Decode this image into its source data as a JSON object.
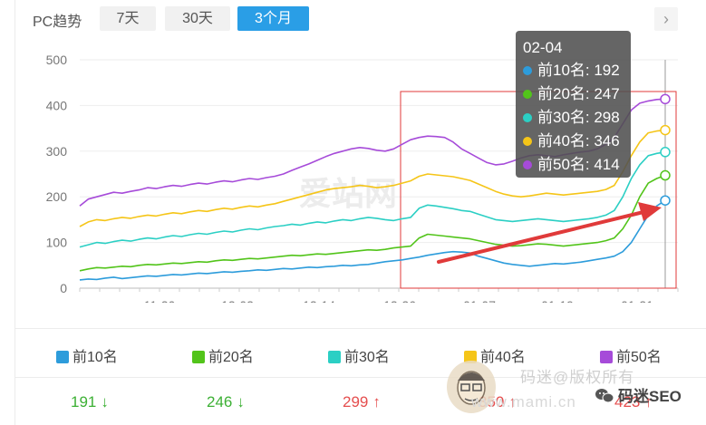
{
  "header": {
    "label": "PC趋势",
    "tabs": [
      {
        "label": "7天",
        "active": false
      },
      {
        "label": "30天",
        "active": false
      },
      {
        "label": "3个月",
        "active": true
      }
    ],
    "next_icon": "chevron-right-icon"
  },
  "tooltip": {
    "date": "02-04",
    "rows": [
      {
        "label": "前10名: 192",
        "color": "#2d9cdb"
      },
      {
        "label": "前20名: 247",
        "color": "#52c41a"
      },
      {
        "label": "前30名: 298",
        "color": "#2bcfc4"
      },
      {
        "label": "前40名: 346",
        "color": "#f5c518"
      },
      {
        "label": "前50名: 414",
        "color": "#a64bd9"
      }
    ]
  },
  "chart_data": {
    "type": "line",
    "title": "",
    "xlabel": "",
    "ylabel": "",
    "ylim": [
      0,
      500
    ],
    "yticks": [
      0,
      100,
      200,
      300,
      400,
      500
    ],
    "xtick_labels": [
      "11-20",
      "12-02",
      "12-14",
      "12-26",
      "01-07",
      "01-19",
      "01-31"
    ],
    "grid": true,
    "legend_position": "bottom",
    "highlight_date": "02-04",
    "series": [
      {
        "name": "前10名",
        "color": "#2d9cdb",
        "values": [
          18,
          20,
          19,
          22,
          24,
          21,
          23,
          25,
          27,
          26,
          28,
          30,
          29,
          31,
          33,
          32,
          34,
          36,
          35,
          37,
          38,
          40,
          39,
          41,
          43,
          42,
          44,
          46,
          45,
          47,
          48,
          50,
          49,
          51,
          52,
          55,
          58,
          60,
          62,
          65,
          68,
          72,
          75,
          78,
          80,
          79,
          77,
          70,
          65,
          60,
          55,
          52,
          50,
          48,
          50,
          52,
          54,
          53,
          55,
          57,
          60,
          63,
          66,
          70,
          80,
          100,
          130,
          160,
          180,
          192
        ]
      },
      {
        "name": "前20名",
        "color": "#52c41a",
        "values": [
          38,
          42,
          45,
          44,
          46,
          48,
          47,
          50,
          52,
          51,
          53,
          55,
          54,
          56,
          58,
          57,
          60,
          62,
          61,
          63,
          65,
          64,
          66,
          68,
          70,
          72,
          71,
          73,
          75,
          74,
          76,
          78,
          80,
          82,
          84,
          83,
          85,
          88,
          90,
          92,
          110,
          118,
          116,
          114,
          112,
          110,
          108,
          104,
          100,
          96,
          94,
          92,
          93,
          95,
          97,
          96,
          94,
          92,
          94,
          96,
          98,
          100,
          104,
          110,
          130,
          160,
          200,
          230,
          240,
          247
        ]
      },
      {
        "name": "前30名",
        "color": "#2bcfc4",
        "values": [
          90,
          95,
          100,
          98,
          102,
          105,
          103,
          107,
          110,
          108,
          112,
          115,
          113,
          117,
          120,
          118,
          122,
          125,
          123,
          127,
          130,
          128,
          132,
          135,
          137,
          140,
          138,
          142,
          145,
          143,
          147,
          150,
          148,
          152,
          155,
          153,
          150,
          148,
          152,
          155,
          175,
          182,
          180,
          177,
          174,
          170,
          168,
          162,
          156,
          150,
          148,
          146,
          148,
          150,
          152,
          150,
          148,
          146,
          148,
          150,
          152,
          155,
          160,
          170,
          200,
          240,
          270,
          290,
          295,
          298
        ]
      },
      {
        "name": "前40名",
        "color": "#f5c518",
        "values": [
          135,
          145,
          150,
          148,
          152,
          155,
          153,
          157,
          160,
          158,
          162,
          165,
          163,
          167,
          170,
          168,
          172,
          175,
          173,
          177,
          180,
          178,
          182,
          185,
          190,
          195,
          200,
          205,
          210,
          215,
          218,
          220,
          222,
          225,
          223,
          220,
          222,
          225,
          230,
          235,
          245,
          250,
          248,
          246,
          244,
          240,
          236,
          228,
          220,
          212,
          206,
          202,
          200,
          202,
          205,
          208,
          206,
          204,
          206,
          208,
          210,
          212,
          216,
          225,
          255,
          290,
          320,
          340,
          344,
          346
        ]
      },
      {
        "name": "前50名",
        "color": "#a64bd9",
        "values": [
          180,
          195,
          200,
          205,
          210,
          208,
          212,
          215,
          220,
          218,
          222,
          225,
          223,
          227,
          230,
          228,
          232,
          235,
          233,
          237,
          240,
          238,
          242,
          245,
          250,
          258,
          265,
          272,
          280,
          288,
          295,
          300,
          305,
          308,
          306,
          302,
          300,
          305,
          315,
          325,
          330,
          333,
          332,
          330,
          320,
          305,
          295,
          285,
          275,
          270,
          272,
          278,
          285,
          290,
          292,
          290,
          288,
          292,
          295,
          298,
          300,
          305,
          315,
          330,
          360,
          390,
          405,
          410,
          413,
          414
        ]
      }
    ],
    "legend": {
      "items": [
        {
          "label": "前10名",
          "color": "#2d9cdb"
        },
        {
          "label": "前20名",
          "color": "#52c41a"
        },
        {
          "label": "前30名",
          "color": "#2bcfc4"
        },
        {
          "label": "前40名",
          "color": "#f5c518"
        },
        {
          "label": "前50名",
          "color": "#a64bd9"
        }
      ]
    }
  },
  "stats": [
    {
      "value": "191",
      "trend": "down",
      "arrow": "↓"
    },
    {
      "value": "246",
      "trend": "down",
      "arrow": "↓"
    },
    {
      "value": "299",
      "trend": "up",
      "arrow": "↑"
    },
    {
      "value": "350",
      "trend": "up",
      "arrow": "↑"
    },
    {
      "value": "423",
      "trend": "up",
      "arrow": "↑"
    }
  ],
  "watermark": {
    "line1": "码迷@版权所有",
    "line2": "www.mami.cn",
    "brand": "码迷SEO",
    "chart_watermark": "爱站网"
  },
  "annotation": {
    "box_color": "#e03a3a",
    "arrow_color": "#e03a3a"
  }
}
